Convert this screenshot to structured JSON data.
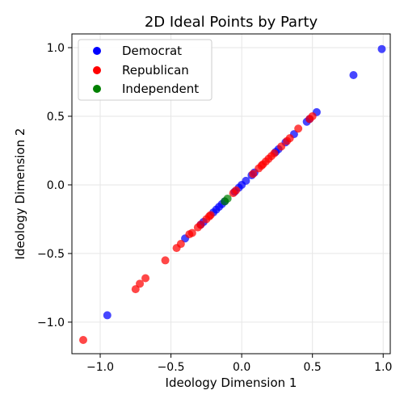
{
  "chart_data": {
    "type": "scatter",
    "title": "2D Ideal Points by Party",
    "xlabel": "Ideology Dimension 1",
    "ylabel": "Ideology Dimension 2",
    "xlim": [
      -1.2,
      1.05
    ],
    "ylim": [
      -1.23,
      1.1
    ],
    "xticks": [
      -1.0,
      -0.5,
      0.0,
      0.5,
      1.0
    ],
    "yticks": [
      -1.0,
      -0.5,
      0.0,
      0.5,
      1.0
    ],
    "xtick_labels": [
      "−1.0",
      "−0.5",
      "0.0",
      "0.5",
      "1.0"
    ],
    "ytick_labels": [
      "−1.0",
      "−0.5",
      "0.0",
      "0.5",
      "1.0"
    ],
    "grid": true,
    "legend_position": "top-left",
    "series": [
      {
        "name": "Democrat",
        "color": "#0000ff",
        "points": [
          [
            0.99,
            0.99
          ],
          [
            0.79,
            0.8
          ],
          [
            0.53,
            0.53
          ],
          [
            0.46,
            0.46
          ],
          [
            0.48,
            0.48
          ],
          [
            0.37,
            0.37
          ],
          [
            0.31,
            0.31
          ],
          [
            0.26,
            0.26
          ],
          [
            0.24,
            0.24
          ],
          [
            0.09,
            0.09
          ],
          [
            0.07,
            0.07
          ],
          [
            0.03,
            0.03
          ],
          [
            0.0,
            0.0
          ],
          [
            -0.02,
            -0.02
          ],
          [
            -0.05,
            -0.05
          ],
          [
            -0.12,
            -0.12
          ],
          [
            -0.14,
            -0.14
          ],
          [
            -0.16,
            -0.16
          ],
          [
            -0.18,
            -0.18
          ],
          [
            -0.2,
            -0.2
          ],
          [
            -0.27,
            -0.27
          ],
          [
            -0.29,
            -0.29
          ],
          [
            -0.4,
            -0.39
          ],
          [
            -0.95,
            -0.95
          ]
        ]
      },
      {
        "name": "Republican",
        "color": "#ff0000",
        "points": [
          [
            -1.12,
            -1.13
          ],
          [
            -0.75,
            -0.76
          ],
          [
            -0.72,
            -0.72
          ],
          [
            -0.68,
            -0.68
          ],
          [
            -0.54,
            -0.55
          ],
          [
            -0.46,
            -0.46
          ],
          [
            -0.43,
            -0.43
          ],
          [
            -0.37,
            -0.36
          ],
          [
            -0.35,
            -0.35
          ],
          [
            -0.31,
            -0.31
          ],
          [
            -0.29,
            -0.29
          ],
          [
            -0.25,
            -0.25
          ],
          [
            -0.23,
            -0.23
          ],
          [
            -0.22,
            -0.22
          ],
          [
            -0.04,
            -0.04
          ],
          [
            -0.06,
            -0.06
          ],
          [
            0.08,
            0.08
          ],
          [
            0.12,
            0.12
          ],
          [
            0.14,
            0.14
          ],
          [
            0.15,
            0.15
          ],
          [
            0.17,
            0.17
          ],
          [
            0.19,
            0.19
          ],
          [
            0.21,
            0.21
          ],
          [
            0.23,
            0.23
          ],
          [
            0.28,
            0.28
          ],
          [
            0.32,
            0.32
          ],
          [
            0.34,
            0.34
          ],
          [
            0.4,
            0.41
          ],
          [
            0.48,
            0.48
          ],
          [
            0.5,
            0.5
          ]
        ]
      },
      {
        "name": "Independent",
        "color": "#008000",
        "points": [
          [
            -0.1,
            -0.1
          ],
          [
            -0.12,
            -0.12
          ]
        ]
      }
    ]
  }
}
